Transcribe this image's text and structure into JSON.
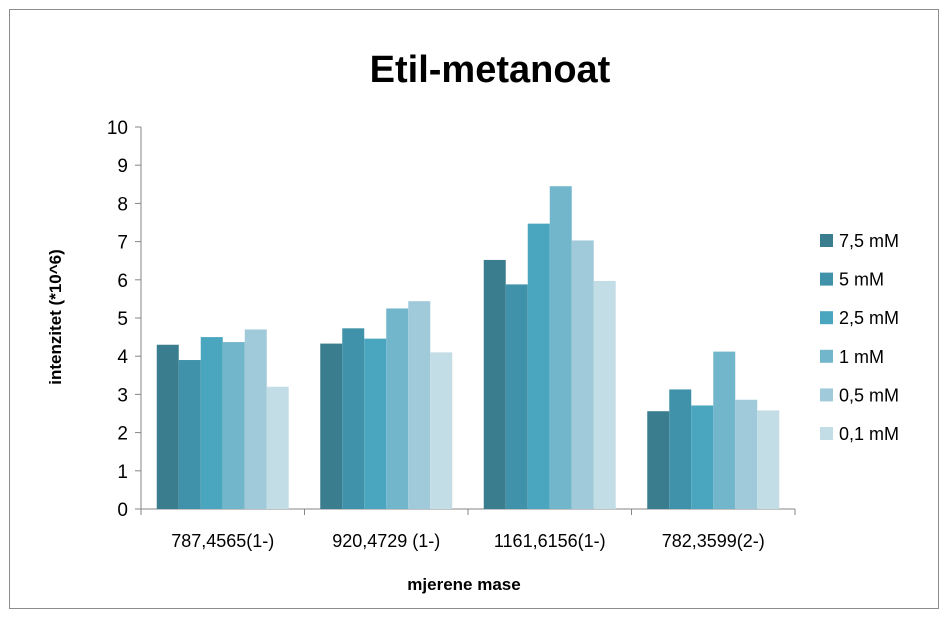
{
  "chart_data": {
    "type": "bar",
    "title": "Etil-metanoat",
    "xlabel": "mjerene mase",
    "ylabel": "intenzitet (*10^6)",
    "ylim": [
      0,
      10
    ],
    "yticks": [
      "0",
      "1",
      "2",
      "3",
      "4",
      "5",
      "6",
      "7",
      "8",
      "9",
      "10"
    ],
    "grid": false,
    "legend_position": "right",
    "categories": [
      "787,4565(1-)",
      "920,4729 (1-)",
      "1161,6156(1-)",
      "782,3599(2-)"
    ],
    "series": [
      {
        "name": "7,5 mM",
        "color": "#3a7d8e",
        "values": [
          4.3,
          4.33,
          6.52,
          2.56
        ]
      },
      {
        "name": "5 mM",
        "color": "#4092aa",
        "values": [
          3.9,
          4.73,
          5.88,
          3.13
        ]
      },
      {
        "name": "2,5 mM",
        "color": "#4aa5be",
        "values": [
          4.5,
          4.46,
          7.47,
          2.71
        ]
      },
      {
        "name": "1 mM",
        "color": "#72b6cb",
        "values": [
          4.37,
          5.25,
          8.45,
          4.12
        ]
      },
      {
        "name": "0,5 mM",
        "color": "#a0cad9",
        "values": [
          4.7,
          5.44,
          7.03,
          2.86
        ]
      },
      {
        "name": "0,1 mM",
        "color": "#c3dde6",
        "values": [
          3.2,
          4.1,
          5.97,
          2.58
        ]
      }
    ]
  }
}
